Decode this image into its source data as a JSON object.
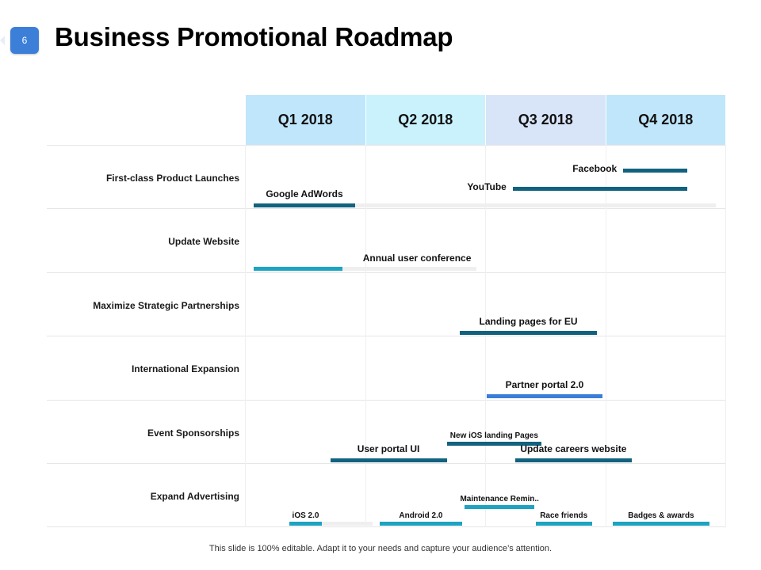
{
  "slide": {
    "number": "6",
    "title": "Business Promotional Roadmap",
    "footer": "This slide is 100% editable. Adapt it to your needs and capture your audience’s attention."
  },
  "colors": {
    "dark_teal": "#12627f",
    "cyan": "#1ea3c1",
    "blue": "#3b7dd8",
    "header_light_blue": "#bfe6fb",
    "header_cyan": "#c9f2fd",
    "header_lavender": "#d8e4f8",
    "track": "#efefef"
  },
  "chart_data": {
    "type": "gantt",
    "quarters": [
      "Q1 2018",
      "Q2 2018",
      "Q3 2018",
      "Q4 2018"
    ],
    "quarter_colors": [
      "#bfe6fb",
      "#c9f2fd",
      "#d8e4f8",
      "#bfe6fb"
    ],
    "x_range_quarters": [
      0,
      4
    ],
    "rows": [
      {
        "label": "First-class Product Launches"
      },
      {
        "label": "Update Website"
      },
      {
        "label": "Maximize Strategic Partnerships"
      },
      {
        "label": "International Expansion"
      },
      {
        "label": "Event  Sponsorships"
      },
      {
        "label": "Expand Advertising"
      }
    ],
    "tasks": [
      {
        "row": 0,
        "label": "Facebook",
        "start": 3.15,
        "end": 3.68,
        "color": "#12627f",
        "label_pos": "left",
        "level": 0,
        "track_end": null,
        "font": 12
      },
      {
        "row": 0,
        "label": "YouTube",
        "start": 2.23,
        "end": 3.68,
        "color": "#12627f",
        "label_pos": "left",
        "level": 1,
        "track_end": null,
        "font": 12
      },
      {
        "row": 0,
        "label": "Google  AdWords",
        "start": 0.07,
        "end": 0.92,
        "color": "#12627f",
        "label_pos": "above",
        "level": 2,
        "track_end": 3.92,
        "font": 12
      },
      {
        "row": 1,
        "label": "Annual user conference",
        "start": 0.07,
        "end": 0.81,
        "color": "#1ea3c1",
        "label_pos": "right-above",
        "level": 2,
        "track_end": 1.93,
        "font": 12
      },
      {
        "row": 2,
        "label": "Landing pages for EU",
        "start": 1.79,
        "end": 2.93,
        "color": "#12627f",
        "label_pos": "above",
        "level": 2,
        "track_end": null,
        "font": 12
      },
      {
        "row": 3,
        "label": "Partner portal 2.0",
        "start": 2.01,
        "end": 2.98,
        "color": "#3b7dd8",
        "label_pos": "above",
        "level": 2,
        "track_end": null,
        "font": 12
      },
      {
        "row": 4,
        "label": "New iOS landing Pages",
        "start": 1.68,
        "end": 2.47,
        "color": "#12627f",
        "label_pos": "above-small",
        "level": 1,
        "track_end": null,
        "font": 10
      },
      {
        "row": 4,
        "label": "User portal UI",
        "start": 0.71,
        "end": 1.68,
        "color": "#12627f",
        "label_pos": "above",
        "level": 2,
        "track_end": null,
        "font": 12
      },
      {
        "row": 4,
        "label": "Update careers website",
        "start": 2.25,
        "end": 3.22,
        "color": "#12627f",
        "label_pos": "above",
        "level": 2,
        "track_end": null,
        "font": 12
      },
      {
        "row": 5,
        "label": "Maintenance Remin..",
        "start": 1.83,
        "end": 2.41,
        "color": "#1ea3c1",
        "label_pos": "above-small",
        "level": 1,
        "track_end": null,
        "font": 10
      },
      {
        "row": 5,
        "label": "iOS 2.0",
        "start": 0.37,
        "end": 0.64,
        "color": "#1ea3c1",
        "label_pos": "above-small",
        "level": 2,
        "track_end": 1.06,
        "font": 10
      },
      {
        "row": 5,
        "label": "Android 2.0",
        "start": 1.12,
        "end": 1.81,
        "color": "#1ea3c1",
        "label_pos": "above-small",
        "level": 2,
        "track_end": null,
        "font": 10
      },
      {
        "row": 5,
        "label": "Race friends",
        "start": 2.42,
        "end": 2.89,
        "color": "#1ea3c1",
        "label_pos": "above-small",
        "level": 2,
        "track_end": null,
        "font": 10
      },
      {
        "row": 5,
        "label": "Badges & awards",
        "start": 3.06,
        "end": 3.87,
        "color": "#1ea3c1",
        "label_pos": "above-small",
        "level": 2,
        "track_end": null,
        "font": 10
      }
    ]
  }
}
